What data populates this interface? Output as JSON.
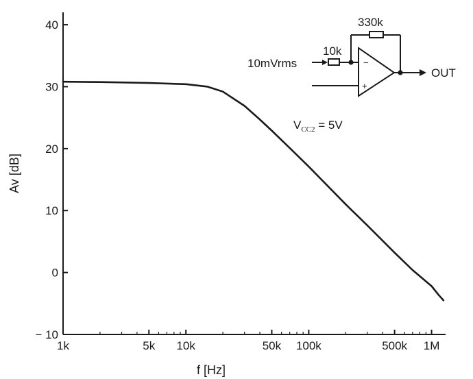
{
  "chart_data": {
    "type": "line",
    "xscale": "log",
    "xlabel": "f [Hz]",
    "ylabel": "Av [dB]",
    "xlim": [
      1000,
      1300000
    ],
    "ylim": [
      -10,
      42
    ],
    "x_ticks": [
      {
        "value": 1000,
        "label": "1k"
      },
      {
        "value": 5000,
        "label": "5k"
      },
      {
        "value": 10000,
        "label": "10k"
      },
      {
        "value": 50000,
        "label": "50k"
      },
      {
        "value": 100000,
        "label": "100k"
      },
      {
        "value": 500000,
        "label": "500k"
      },
      {
        "value": 1000000,
        "label": "1M"
      }
    ],
    "y_ticks": [
      {
        "value": -10,
        "label": "− 10"
      },
      {
        "value": 0,
        "label": "0"
      },
      {
        "value": 10,
        "label": "10"
      },
      {
        "value": 20,
        "label": "20"
      },
      {
        "value": 30,
        "label": "30"
      },
      {
        "value": 40,
        "label": "40"
      }
    ],
    "series": [
      {
        "x": [
          1000,
          2000,
          5000,
          10000,
          15000,
          20000,
          30000,
          40000,
          50000,
          70000,
          100000,
          200000,
          300000,
          500000,
          700000,
          1000000,
          1150000,
          1250000
        ],
        "y": [
          30.8,
          30.75,
          30.6,
          30.4,
          30.0,
          29.2,
          26.9,
          24.7,
          22.9,
          20.1,
          17.1,
          11.0,
          7.6,
          3.2,
          0.4,
          -2.2,
          -3.7,
          -4.5
        ]
      }
    ],
    "annotations": {
      "supply": {
        "main": "V",
        "sub": "CC2",
        "rest": " = 5V"
      }
    },
    "grid": false,
    "legend": "none"
  },
  "schematic": {
    "input_label": "10mVrms",
    "input_resistor": "10k",
    "feedback_resistor": "330k",
    "output_label": "OUT",
    "minus_sign": "−",
    "plus_sign": "+"
  }
}
